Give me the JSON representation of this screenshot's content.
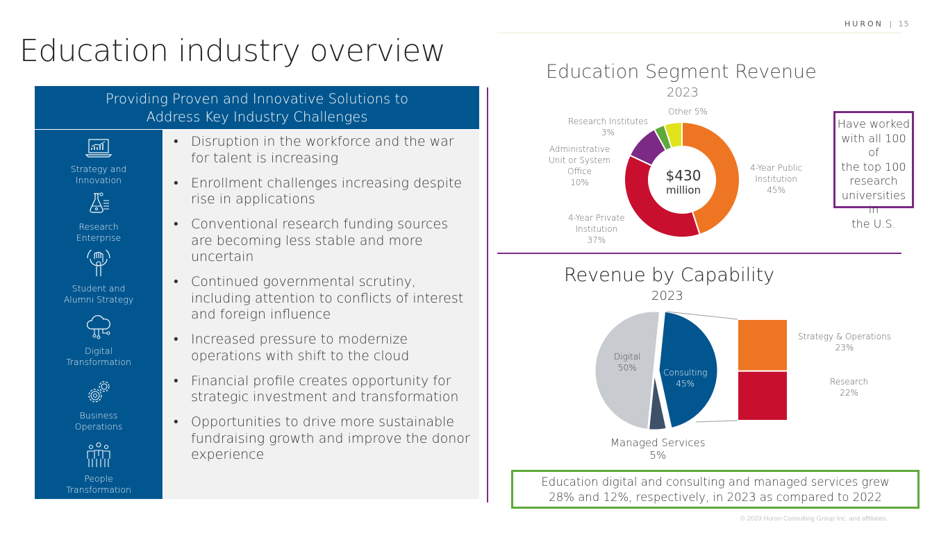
{
  "header": {
    "brand": "HURON",
    "separator": "|",
    "page_number": "15"
  },
  "page_title": "Education industry overview",
  "panel": {
    "heading_line1": "Providing Proven and Innovative Solutions to",
    "heading_line2": "Address Key Industry Challenges",
    "capabilities": [
      {
        "icon": "laptop-chart-icon",
        "line1": "Strategy and",
        "line2": "Innovation"
      },
      {
        "icon": "lab-flask-icon",
        "line1": "Research",
        "line2": "Enterprise"
      },
      {
        "icon": "raised-hand-icon",
        "line1": "Student and",
        "line2": "Alumni Strategy"
      },
      {
        "icon": "cloud-network-icon",
        "line1": "Digital",
        "line2": "Transformation"
      },
      {
        "icon": "gears-icon",
        "line1": "Business",
        "line2": "Operations"
      },
      {
        "icon": "people-group-icon",
        "line1": "People",
        "line2": "Transformation"
      }
    ],
    "bullets": [
      "Disruption in the workforce and the war for talent is increasing",
      "Enrollment challenges increasing despite rise in applications",
      "Conventional research funding sources are becoming less stable and more uncertain",
      "Continued governmental scrutiny, including attention to conflicts of interest and foreign influence",
      "Increased pressure to modernize operations with shift to the cloud",
      "Financial profile creates opportunity for strategic investment and transformation",
      "Opportunities to drive more sustainable fundraising growth and improve the donor experience"
    ]
  },
  "chart_data": [
    {
      "type": "pie",
      "title": "Education Segment Revenue",
      "subtitle": "2023",
      "center_label_line1": "$430",
      "center_label_line2": "million",
      "slices": [
        {
          "label_lines": [
            "4-Year Public",
            "Institution",
            "45%"
          ],
          "value": 45,
          "color": "#ee7623"
        },
        {
          "label_lines": [
            "4-Year Private",
            "Institution",
            "37%"
          ],
          "value": 37,
          "color": "#c8102e"
        },
        {
          "label_lines": [
            "Administrative",
            "Unit or System",
            "Office",
            "10%"
          ],
          "value": 10,
          "color": "#7b2a86"
        },
        {
          "label_lines": [
            "Research Institutes",
            "3%"
          ],
          "value": 3,
          "color": "#5fa83a"
        },
        {
          "label_lines": [
            "Other 5%"
          ],
          "value": 5,
          "color": "#e2e31b"
        }
      ]
    },
    {
      "type": "pie",
      "title": "Revenue by Capability",
      "subtitle": "2023",
      "slices": [
        {
          "label_lines": [
            "Consulting",
            "45%"
          ],
          "value": 45,
          "color": "#02568f"
        },
        {
          "label_lines": [
            "Managed Services",
            "5%"
          ],
          "value": 5,
          "color": "#3e5169"
        },
        {
          "label_lines": [
            "Digital",
            "50%"
          ],
          "value": 50,
          "color": "#c8ccd1"
        }
      ],
      "breakdown": [
        {
          "label_lines": [
            "Strategy & Operations",
            "23%"
          ],
          "value": 23,
          "color": "#ee7623"
        },
        {
          "label_lines": [
            "Research",
            "22%"
          ],
          "value": 22,
          "color": "#c8102e"
        }
      ]
    }
  ],
  "callouts": {
    "universities_lines": [
      "Have worked",
      "with all 100 of",
      "the top 100",
      "research",
      "universities in",
      "the U.S."
    ],
    "growth_line1": "Education digital and consulting and managed services grew",
    "growth_line2": "28% and 12%, respectively, in 2023 as compared to 2022"
  },
  "footer": {
    "copyright": "© 2023 Huron Consulting Group Inc. and affiliates."
  }
}
